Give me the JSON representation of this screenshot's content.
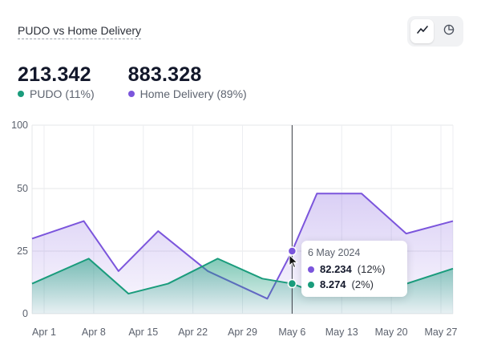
{
  "header": {
    "title": "PUDO vs Home Delivery"
  },
  "toggle": {
    "line_icon": "line-chart-icon",
    "pie_icon": "pie-chart-icon",
    "active": "line"
  },
  "stats": [
    {
      "value": "213.342",
      "label": "PUDO (11%)",
      "color": "#1a9c7c"
    },
    {
      "value": "883.328",
      "label": "Home Delivery (89%)",
      "color": "#7b55dc"
    }
  ],
  "tooltip": {
    "date": "6 May 2024",
    "rows": [
      {
        "value": "82.234",
        "pct": "(12%)",
        "color": "#7b55dc"
      },
      {
        "value": "8.274",
        "pct": "(2%)",
        "color": "#1a9c7c"
      }
    ]
  },
  "chart_data": {
    "type": "area",
    "x": [
      "Apr 1",
      "Apr 8",
      "Apr 15",
      "Apr 22",
      "Apr 29",
      "May 6",
      "May 13",
      "May 20",
      "May 27"
    ],
    "ylim": [
      0,
      100
    ],
    "yticks": [
      0,
      25,
      50,
      100
    ],
    "series": [
      {
        "name": "Home Delivery",
        "color": "#7b55dc",
        "points": [
          [
            0,
            30
          ],
          [
            0.8,
            37
          ],
          [
            1.5,
            17
          ],
          [
            2.3,
            33
          ],
          [
            3.3,
            17
          ],
          [
            4.5,
            6
          ],
          [
            5,
            25
          ],
          [
            5.5,
            48
          ],
          [
            6.4,
            48
          ],
          [
            7.3,
            32
          ],
          [
            8,
            37
          ]
        ]
      },
      {
        "name": "PUDO",
        "color": "#1a9c7c",
        "points": [
          [
            0,
            12
          ],
          [
            0.9,
            22
          ],
          [
            1.7,
            8
          ],
          [
            2.5,
            12
          ],
          [
            3.5,
            22
          ],
          [
            4.4,
            14
          ],
          [
            5,
            12
          ],
          [
            5.4,
            9
          ],
          [
            6,
            10
          ],
          [
            7,
            10
          ],
          [
            8,
            18
          ]
        ]
      }
    ],
    "highlight": {
      "x_index": 5,
      "label": "May 6"
    },
    "grid": true
  }
}
